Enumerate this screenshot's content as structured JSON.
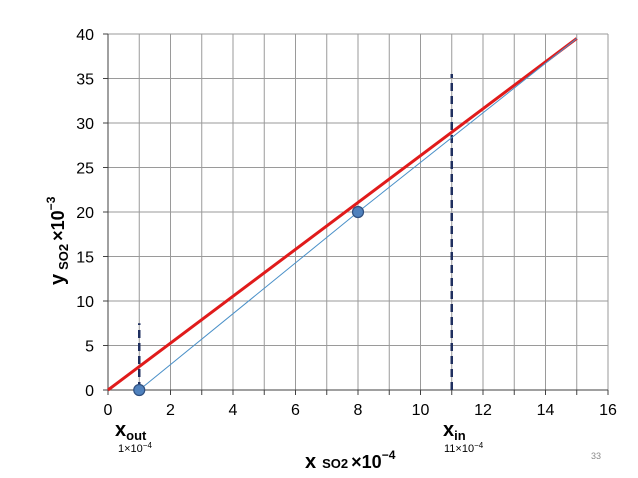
{
  "chart_data": {
    "type": "line",
    "xlabel": {
      "main": "x",
      "sub": "SO2",
      "factor": "×10",
      "exp": "−4"
    },
    "ylabel": {
      "main": "y",
      "sub": "SO2",
      "factor": "×10",
      "exp": "−3"
    },
    "xlim": [
      0,
      16
    ],
    "ylim": [
      0,
      40
    ],
    "xticks": [
      "0",
      "2",
      "4",
      "6",
      "8",
      "10",
      "12",
      "14",
      "16"
    ],
    "yticks": [
      "0",
      "5",
      "10",
      "15",
      "20",
      "25",
      "30",
      "35",
      "40"
    ],
    "grid": true,
    "series": [
      {
        "color": "#e01b1b",
        "x": [
          0,
          15
        ],
        "y": [
          0,
          39.5
        ]
      },
      {
        "color": "#4a90c8",
        "x": [
          1,
          8,
          15
        ],
        "y": [
          0,
          20,
          39.5
        ]
      }
    ],
    "points": [
      {
        "x": 1,
        "y": 0,
        "color": "#4f81bd"
      },
      {
        "x": 8,
        "y": 20,
        "color": "#4f81bd"
      }
    ],
    "vlines": [
      {
        "x": 1,
        "y0": 0,
        "y1": 7.5,
        "color": "#1f2f5f"
      },
      {
        "x": 11,
        "y0": 0,
        "y1": 35.5,
        "color": "#1f2f5f"
      }
    ],
    "annotations": [
      {
        "main": "x",
        "sub": "out",
        "value": "1×10",
        "exp": "−4"
      },
      {
        "main": "x",
        "sub": "in",
        "value": "11×10",
        "exp": "−4"
      }
    ]
  },
  "page_number": "33"
}
